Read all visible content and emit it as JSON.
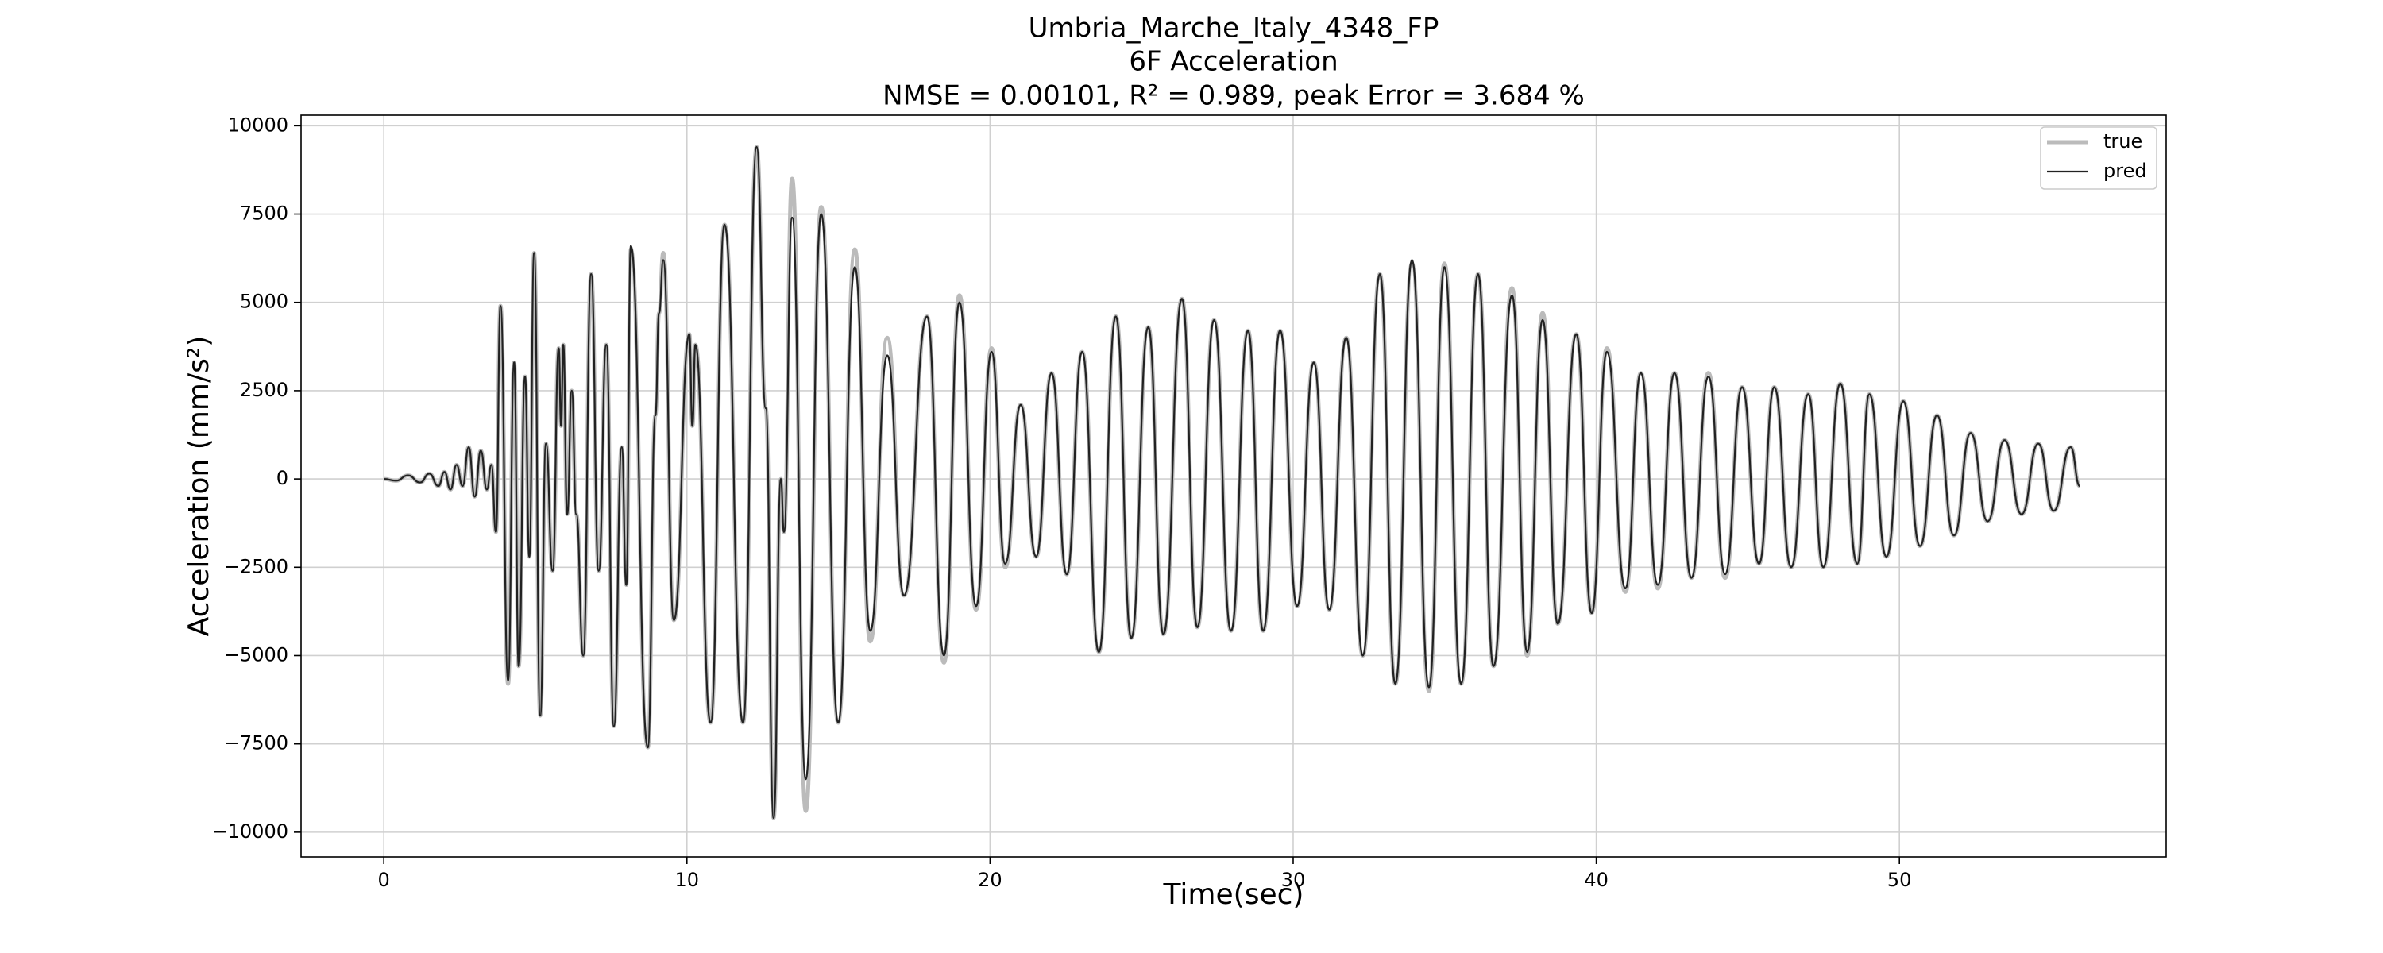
{
  "chart_data": {
    "type": "line",
    "title": [
      "Umbria_Marche_Italy_4348_FP",
      "6F Acceleration",
      "NMSE = 0.00101, R² = 0.989, peak Error = 3.684 %"
    ],
    "x_label": "Time(sec)",
    "y_label": "Acceleration (mm/s²)",
    "xlim": [
      -2.73,
      58.8
    ],
    "ylim": [
      -10700,
      10300
    ],
    "xticks": [
      0,
      10,
      20,
      30,
      40,
      50
    ],
    "yticks": [
      {
        "value": -10000,
        "label": "−10000"
      },
      {
        "value": -7500,
        "label": "−7500"
      },
      {
        "value": -5000,
        "label": "−5000"
      },
      {
        "value": -2500,
        "label": "−2500"
      },
      0,
      2500,
      5000,
      7500,
      10000
    ],
    "grid": true,
    "legend": "upper right",
    "x": [
      0,
      0.4,
      0.8,
      1.2,
      1.5,
      1.8,
      2.0,
      2.2,
      2.4,
      2.6,
      2.8,
      3.0,
      3.2,
      3.4,
      3.55,
      3.7,
      3.85,
      4.1,
      4.3,
      4.45,
      4.66,
      4.8,
      4.96,
      5.16,
      5.35,
      5.57,
      5.77,
      5.85,
      5.92,
      6.05,
      6.2,
      6.35,
      6.58,
      6.84,
      7.09,
      7.34,
      7.59,
      7.85,
      8.0,
      8.15,
      8.71,
      8.96,
      9.08,
      9.22,
      9.57,
      10.08,
      10.18,
      10.28,
      10.78,
      11.24,
      11.85,
      12.3,
      12.6,
      12.86,
      13.1,
      13.2,
      13.47,
      13.92,
      14.43,
      14.99,
      15.54,
      16.05,
      16.61,
      17.16,
      17.92,
      18.48,
      18.99,
      19.54,
      20.05,
      20.5,
      21.01,
      21.52,
      22.03,
      22.53,
      23.04,
      23.59,
      24.15,
      24.66,
      25.22,
      25.72,
      26.33,
      26.84,
      27.39,
      27.95,
      28.51,
      29.01,
      29.57,
      30.13,
      30.68,
      31.19,
      31.75,
      32.3,
      32.86,
      33.37,
      33.92,
      34.48,
      34.99,
      35.54,
      36.1,
      36.61,
      37.22,
      37.72,
      38.23,
      38.73,
      39.34,
      39.85,
      40.35,
      40.96,
      41.47,
      42.03,
      42.58,
      43.14,
      43.7,
      44.25,
      44.81,
      45.37,
      45.87,
      46.43,
      46.99,
      47.49,
      48.05,
      48.61,
      49.01,
      49.57,
      50.13,
      50.68,
      51.24,
      51.8,
      52.35,
      52.91,
      53.47,
      54.03,
      54.58,
      55.09,
      55.65,
      55.95
    ],
    "series": [
      {
        "name": "true",
        "color": "#bbbbbb",
        "values": [
          0,
          -50,
          100,
          -100,
          150,
          -200,
          200,
          -300,
          400,
          -200,
          900,
          -500,
          800,
          -300,
          400,
          -1500,
          4900,
          -5800,
          3300,
          -5300,
          2900,
          -2200,
          6400,
          -6700,
          1000,
          -2600,
          3700,
          1500,
          3800,
          -1000,
          2500,
          -1000,
          -5000,
          5800,
          -2600,
          3800,
          -7000,
          900,
          -3000,
          6500,
          -7600,
          1800,
          4700,
          6400,
          -4000,
          4100,
          1500,
          3800,
          -6900,
          7200,
          -6900,
          9400,
          2000,
          -9600,
          0,
          -1500,
          8500,
          -9400,
          7700,
          -6900,
          6500,
          -4600,
          4000,
          -3300,
          4600,
          -5200,
          5200,
          -3700,
          3700,
          -2500,
          2100,
          -2200,
          3000,
          -2700,
          3600,
          -4900,
          4600,
          -4500,
          4300,
          -4400,
          5100,
          -4200,
          4500,
          -4300,
          4200,
          -4300,
          4200,
          -3600,
          3300,
          -3700,
          4000,
          -5000,
          5800,
          -5800,
          6100,
          -6000,
          6100,
          -5800,
          5800,
          -5300,
          5400,
          -5000,
          4700,
          -4100,
          4100,
          -3800,
          3700,
          -3200,
          3000,
          -3100,
          3000,
          -2800,
          3000,
          -2800,
          2600,
          -2400,
          2600,
          -2500,
          2400,
          -2500,
          2700,
          -2400,
          2400,
          -2200,
          2200,
          -1900,
          1800,
          -1600,
          1300,
          -1200,
          1100,
          -1000,
          1000,
          -900,
          900,
          -200
        ]
      },
      {
        "name": "pred",
        "color": "#222222",
        "values": [
          0,
          -50,
          100,
          -100,
          150,
          -200,
          200,
          -300,
          400,
          -200,
          900,
          -500,
          800,
          -300,
          400,
          -1500,
          4900,
          -5700,
          3300,
          -5300,
          2900,
          -2200,
          6400,
          -6700,
          1000,
          -2600,
          3700,
          1500,
          3800,
          -1000,
          2500,
          -1000,
          -5000,
          5800,
          -2600,
          3800,
          -7000,
          900,
          -3000,
          6600,
          -7600,
          1800,
          4700,
          6200,
          -4000,
          4100,
          1500,
          3800,
          -6900,
          7200,
          -6900,
          9400,
          2000,
          -9600,
          0,
          -1500,
          7400,
          -8500,
          7500,
          -6900,
          6000,
          -4300,
          3500,
          -3300,
          4600,
          -5000,
          5000,
          -3600,
          3600,
          -2400,
          2100,
          -2200,
          3000,
          -2700,
          3600,
          -4900,
          4600,
          -4500,
          4300,
          -4400,
          5100,
          -4200,
          4500,
          -4300,
          4200,
          -4300,
          4200,
          -3600,
          3300,
          -3700,
          4000,
          -5000,
          5800,
          -5800,
          6200,
          -5900,
          6000,
          -5800,
          5800,
          -5300,
          5200,
          -4900,
          4500,
          -4100,
          4100,
          -3800,
          3600,
          -3100,
          3000,
          -3000,
          3000,
          -2800,
          2900,
          -2700,
          2600,
          -2400,
          2600,
          -2500,
          2400,
          -2500,
          2700,
          -2400,
          2400,
          -2200,
          2200,
          -1900,
          1800,
          -1600,
          1300,
          -1200,
          1100,
          -1000,
          1000,
          -900,
          900,
          -200
        ]
      }
    ]
  }
}
